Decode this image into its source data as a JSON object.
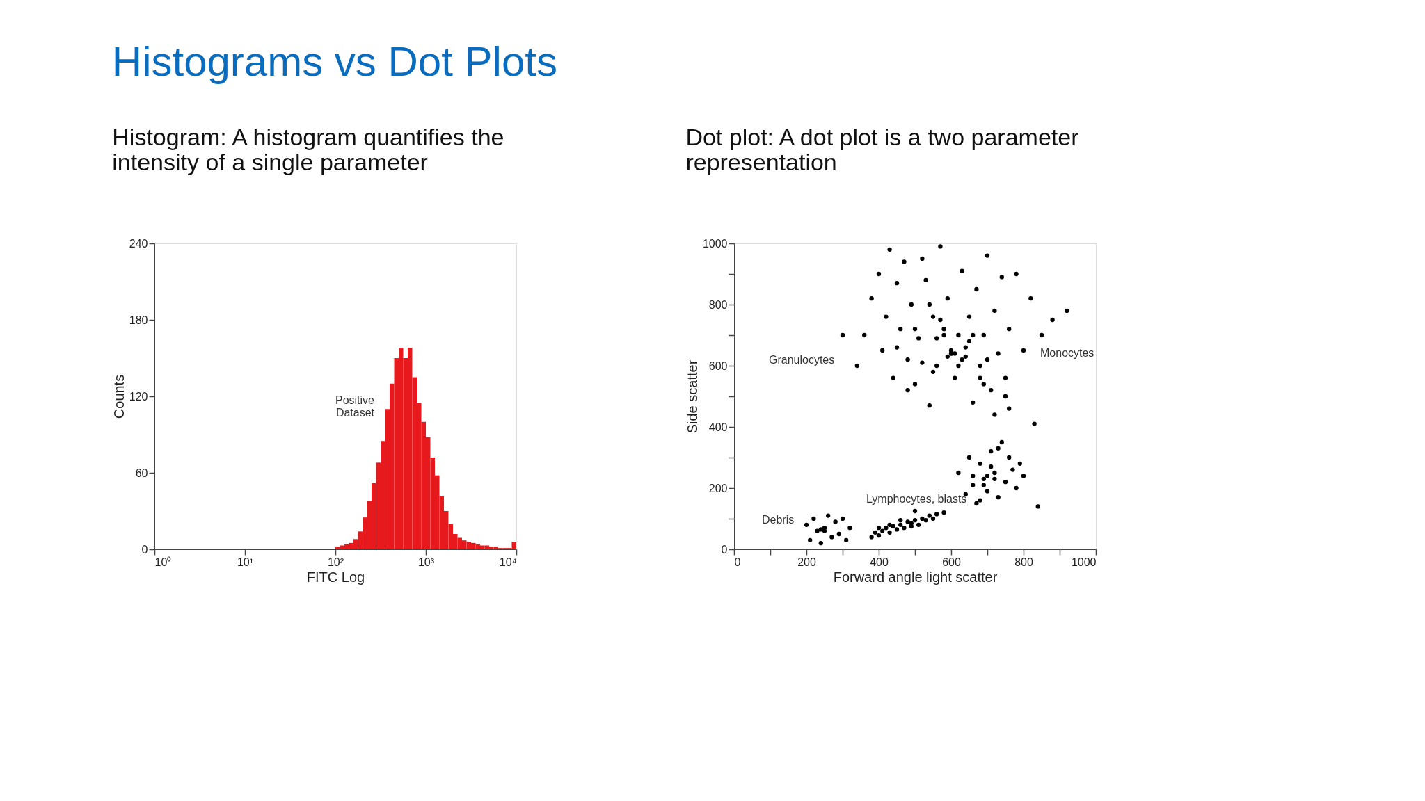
{
  "chart_data": [
    {
      "type": "histogram",
      "title": "Histograms vs Dot Plots",
      "subtitle": [
        "Histogram: A histogram quantifies the",
        "intensity of a single parameter"
      ],
      "xlabel": "FITC Log",
      "ylabel": "Counts",
      "color": "#e8191c",
      "log": "x",
      "bins": [
        100,
        112.2,
        125.9,
        141.3,
        158.5,
        177.8,
        199.5,
        223.9,
        251.2,
        281.8,
        316.2,
        354.8,
        398.1,
        446.7,
        501.2,
        562.3,
        631.0,
        707.9,
        794.3,
        891.3,
        1000,
        1122,
        1259,
        1413,
        1585,
        1778,
        1995,
        2239,
        2512,
        2818,
        3162,
        3548,
        3981,
        4467,
        5012,
        5623,
        6310,
        7079,
        7943,
        8913,
        10000
      ],
      "values": [
        2,
        3,
        4,
        5,
        8,
        14,
        25,
        38,
        52,
        68,
        85,
        110,
        130,
        150,
        158,
        150,
        158,
        135,
        115,
        100,
        88,
        72,
        58,
        42,
        30,
        20,
        12,
        9,
        7,
        6,
        5,
        4,
        3,
        3,
        2,
        2,
        1,
        1,
        1,
        6
      ],
      "xlim": [
        1,
        10000
      ],
      "xticks": [
        {
          "value": 1,
          "label": "10⁰"
        },
        {
          "value": 10,
          "label": "10¹"
        },
        {
          "value": 100,
          "label": "10²"
        },
        {
          "value": 1000,
          "label": "10³"
        },
        {
          "value": 10000,
          "label": "10⁴"
        }
      ],
      "ylim": [
        0,
        240
      ],
      "yticks": [
        0,
        60,
        120,
        180,
        240
      ],
      "grid": false,
      "annotations": [
        {
          "text": "Positive\nDataset",
          "x": 420,
          "y": 135
        }
      ]
    },
    {
      "type": "scatter",
      "subtitle": [
        "Dot plot: A dot plot is a two parameter",
        "representation"
      ],
      "xlabel": "Forward angle light scatter",
      "ylabel": "Side scatter",
      "marker": "circle",
      "grid": false,
      "xlim": [
        0,
        1000
      ],
      "ylim": [
        0,
        1000
      ],
      "xticks": [
        0,
        {
          "value": 100,
          "label": null
        },
        200,
        {
          "value": 300,
          "label": null
        },
        400,
        {
          "value": 500,
          "label": null
        },
        600,
        {
          "value": 700,
          "label": null
        },
        800,
        {
          "value": 900,
          "label": null
        },
        1000
      ],
      "yticks": [
        0,
        {
          "value": 100,
          "label": null
        },
        200,
        {
          "value": 300,
          "label": null
        },
        400,
        {
          "value": 500,
          "label": null
        },
        600,
        {
          "value": 700,
          "label": null
        },
        800,
        {
          "value": 900,
          "label": null
        },
        1000
      ],
      "series": [
        {
          "color": "#000000",
          "x": [
            340,
            360,
            380,
            400,
            410,
            420,
            430,
            440,
            450,
            460,
            470,
            480,
            490,
            500,
            510,
            520,
            530,
            540,
            550,
            560,
            570,
            580,
            590,
            600,
            610,
            620,
            630,
            640,
            650,
            660,
            670,
            680,
            690,
            700,
            710,
            720,
            730,
            740,
            750,
            760,
            780,
            800,
            820,
            850,
            880,
            920,
            450,
            500,
            550,
            600,
            650,
            700,
            750,
            520,
            580,
            620,
            680,
            560,
            610,
            640,
            590,
            630,
            600,
            570,
            660,
            540,
            480,
            720,
            760,
            690
          ],
          "values": [
            600,
            700,
            820,
            900,
            650,
            760,
            980,
            560,
            870,
            720,
            940,
            620,
            800,
            540,
            690,
            950,
            880,
            470,
            760,
            600,
            990,
            720,
            820,
            650,
            560,
            700,
            910,
            630,
            760,
            480,
            850,
            600,
            700,
            960,
            520,
            780,
            640,
            890,
            560,
            720,
            900,
            650,
            820,
            700,
            750,
            780,
            660,
            720,
            580,
            640,
            680,
            620,
            500,
            610,
            700,
            600,
            560,
            690,
            640,
            660,
            630,
            620,
            640,
            750,
            700,
            800,
            520,
            440,
            460,
            540
          ]
        },
        {
          "color": "#000000",
          "x": [
            380,
            390,
            400,
            410,
            420,
            430,
            440,
            450,
            460,
            470,
            480,
            490,
            500,
            510,
            520,
            530,
            540,
            550,
            560,
            580,
            400,
            430,
            460,
            490,
            500
          ],
          "values": [
            40,
            55,
            45,
            60,
            70,
            55,
            75,
            65,
            80,
            70,
            90,
            85,
            95,
            80,
            100,
            95,
            110,
            100,
            115,
            120,
            70,
            80,
            95,
            75,
            125
          ]
        },
        {
          "color": "#000000",
          "x": [
            620,
            640,
            650,
            660,
            670,
            680,
            690,
            700,
            710,
            720,
            730,
            740,
            750,
            760,
            770,
            780,
            790,
            800,
            690,
            700,
            710,
            720,
            680,
            730,
            660
          ],
          "values": [
            250,
            180,
            300,
            210,
            150,
            280,
            230,
            190,
            320,
            250,
            170,
            350,
            220,
            300,
            260,
            200,
            280,
            240,
            210,
            240,
            270,
            230,
            160,
            330,
            240
          ]
        },
        {
          "color": "#000000",
          "x": [
            200,
            210,
            220,
            230,
            240,
            250,
            260,
            270,
            280,
            290,
            300,
            310,
            320,
            250,
            240,
            300,
            840,
            830,
            920
          ],
          "values": [
            80,
            30,
            100,
            60,
            20,
            70,
            110,
            40,
            90,
            50,
            100,
            30,
            70,
            60,
            65,
            700,
            140,
            410,
            780
          ]
        }
      ],
      "annotations": [
        "Granulocytes",
        "Monocytes",
        "Lymphocytes, blasts",
        "Debris"
      ]
    }
  ]
}
